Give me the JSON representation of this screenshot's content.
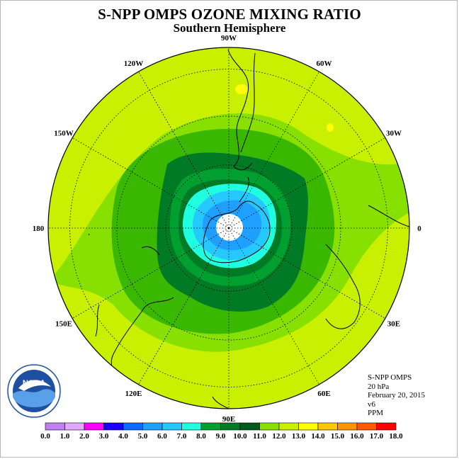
{
  "title": "S-NPP OMPS OZONE MIXING RATIO",
  "subtitle": "Southern Hemisphere",
  "longitude_labels": [
    {
      "id": "lon-0",
      "text": "0",
      "lon": 0
    },
    {
      "id": "lon-30e",
      "text": "30E",
      "lon": 30
    },
    {
      "id": "lon-60e",
      "text": "60E",
      "lon": 60
    },
    {
      "id": "lon-90e",
      "text": "90E",
      "lon": 90
    },
    {
      "id": "lon-120e",
      "text": "120E",
      "lon": 120
    },
    {
      "id": "lon-150e",
      "text": "150E",
      "lon": 150
    },
    {
      "id": "lon-180",
      "text": "180",
      "lon": 180
    },
    {
      "id": "lon-150w",
      "text": "150W",
      "lon": -150
    },
    {
      "id": "lon-120w",
      "text": "120W",
      "lon": -120
    },
    {
      "id": "lon-90w",
      "text": "90W",
      "lon": -90
    },
    {
      "id": "lon-60w",
      "text": "60W",
      "lon": -60
    },
    {
      "id": "lon-30w",
      "text": "30W",
      "lon": -30
    }
  ],
  "info": {
    "instrument": "S-NPP OMPS",
    "pressure": "20 hPa",
    "date": "February 20, 2015",
    "version": "v6",
    "units": "PPM"
  },
  "logo_text": "NOAA",
  "color_bar": {
    "labels": [
      "0.0",
      "1.0",
      "2.0",
      "3.0",
      "4.0",
      "5.0",
      "6.0",
      "7.0",
      "8.0",
      "9.0",
      "10.0",
      "11.0",
      "12.0",
      "13.0",
      "14.0",
      "15.0",
      "16.0",
      "17.0",
      "18.0"
    ],
    "colors": [
      "#c080f0",
      "#e0a8ff",
      "#ff00ff",
      "#1a00ff",
      "#0a6aff",
      "#1f9fff",
      "#25c8ff",
      "#20ffe0",
      "#00a030",
      "#007a24",
      "#005a1c",
      "#88e000",
      "#c8f000",
      "#ffff00",
      "#ffc800",
      "#ff9600",
      "#ff5a00",
      "#ff0000",
      "#8a6040"
    ]
  },
  "map_colors": {
    "ocean_background": "#c8f000",
    "band_11": "#88e000",
    "band_10": "#3ab800",
    "band_9": "#007a24",
    "band_8": "#00a030",
    "band_7": "#20ffe0",
    "band_6": "#25c8ff",
    "band_5": "#1f9fff",
    "yellow_patch": "#ffff00"
  }
}
